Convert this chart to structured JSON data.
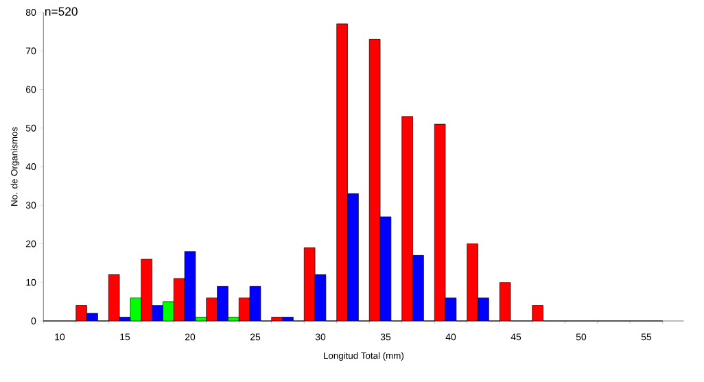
{
  "chart_data": {
    "type": "bar",
    "xlabel": "Longitud Total (mm)",
    "ylabel": "No. de Organismos",
    "annotations": [
      "n=520"
    ],
    "categories": [
      "10",
      null,
      "15",
      null,
      "20",
      null,
      "25",
      null,
      "30",
      null,
      "35",
      null,
      "40",
      null,
      "45",
      null,
      "50",
      null,
      "55"
    ],
    "series": [
      {
        "color": "#ff0000",
        "values": [
          0,
          4,
          12,
          16,
          11,
          6,
          6,
          1,
          19,
          77,
          73,
          53,
          51,
          20,
          10,
          4,
          0,
          0,
          0
        ]
      },
      {
        "color": "#0000ff",
        "values": [
          0,
          2,
          1,
          4,
          18,
          9,
          9,
          1,
          12,
          33,
          27,
          17,
          6,
          6,
          0,
          0,
          0,
          0,
          0
        ]
      },
      {
        "color": "#00ff00",
        "values": [
          0,
          0,
          6,
          5,
          1,
          1,
          0,
          0,
          0,
          0,
          0,
          0,
          0,
          0,
          0,
          0,
          0,
          0,
          0
        ]
      }
    ],
    "ylim": [
      0,
      80
    ],
    "yticks": [
      0,
      10,
      20,
      30,
      40,
      50,
      60,
      70,
      80
    ],
    "grid": false
  }
}
